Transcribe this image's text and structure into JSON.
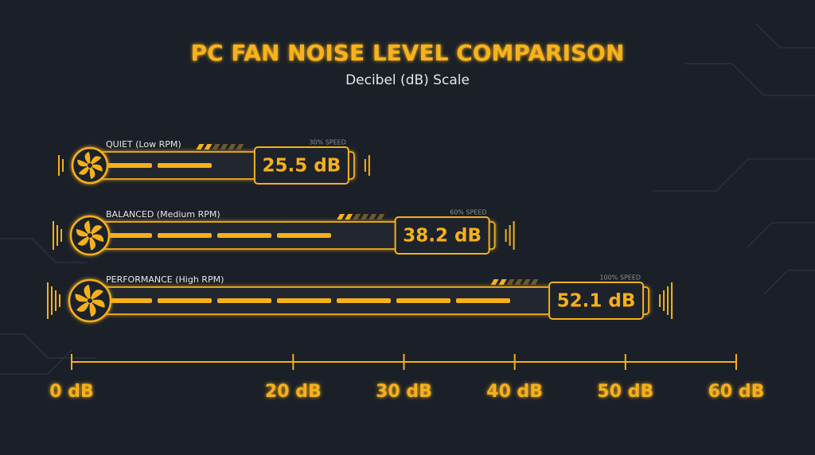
{
  "chart_data": {
    "type": "bar",
    "orientation": "horizontal",
    "title": "PC FAN NOISE LEVEL COMPARISON",
    "subtitle": "Decibel (dB) Scale",
    "categories": [
      "QUIET (Low RPM)",
      "BALANCED (Medium RPM)",
      "PERFORMANCE (High RPM)"
    ],
    "annotations": [
      "30% SPEED",
      "60% SPEED",
      "100% SPEED"
    ],
    "values": [
      25.5,
      38.2,
      52.1
    ],
    "value_labels": [
      "25.5 dB",
      "38.2 dB",
      "52.1 dB"
    ],
    "color": "#f5b01a",
    "xlim": [
      0,
      60
    ],
    "xticks": [
      {
        "value": 0,
        "label": "0 dB"
      },
      {
        "value": 20,
        "label": "20 dB"
      },
      {
        "value": 30,
        "label": "30 dB"
      },
      {
        "value": 40,
        "label": "40 dB"
      },
      {
        "value": 50,
        "label": "50 dB"
      },
      {
        "value": 60,
        "label": "60 dB"
      }
    ]
  }
}
